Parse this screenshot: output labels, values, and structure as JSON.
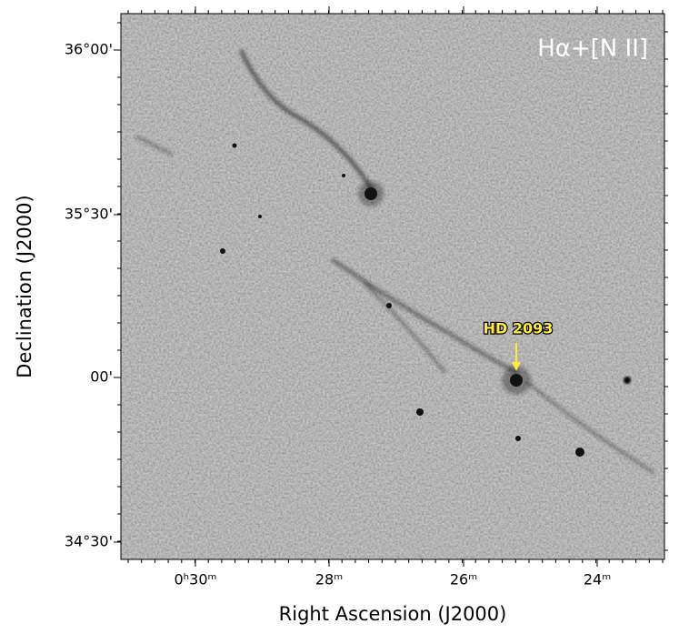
{
  "image": {
    "label": "Hα+[N II]",
    "annotation": "HD 2093"
  },
  "x_axis": {
    "title": "Right Ascension (J2000)",
    "ticks": [
      "0ʰ30ᵐ",
      "28ᵐ",
      "26ᵐ",
      "24ᵐ"
    ]
  },
  "y_axis": {
    "title": "Declination (J2000)",
    "ticks": [
      "36°00'",
      "35°30'",
      "00'",
      "34°30'"
    ]
  }
}
